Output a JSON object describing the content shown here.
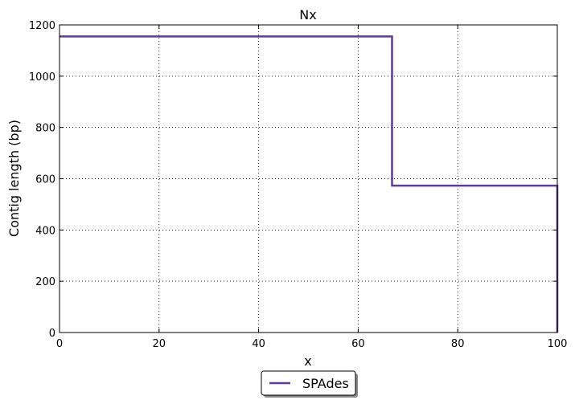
{
  "chart_data": {
    "type": "line",
    "title": "Nx",
    "xlabel": "x",
    "ylabel": "Contig length  (bp)",
    "xlim": [
      0,
      100
    ],
    "ylim": [
      0,
      1200
    ],
    "xticks": [
      0,
      20,
      40,
      60,
      80,
      100
    ],
    "yticks": [
      0,
      200,
      400,
      600,
      800,
      1000,
      1200
    ],
    "grid": true,
    "legend_position": "bottom-center",
    "series": [
      {
        "name": "SPAdes",
        "color": "#5e3c8f",
        "step": true,
        "x": [
          0,
          66.8,
          66.8,
          100,
          100
        ],
        "y": [
          1155,
          1155,
          573,
          573,
          0
        ]
      }
    ]
  }
}
